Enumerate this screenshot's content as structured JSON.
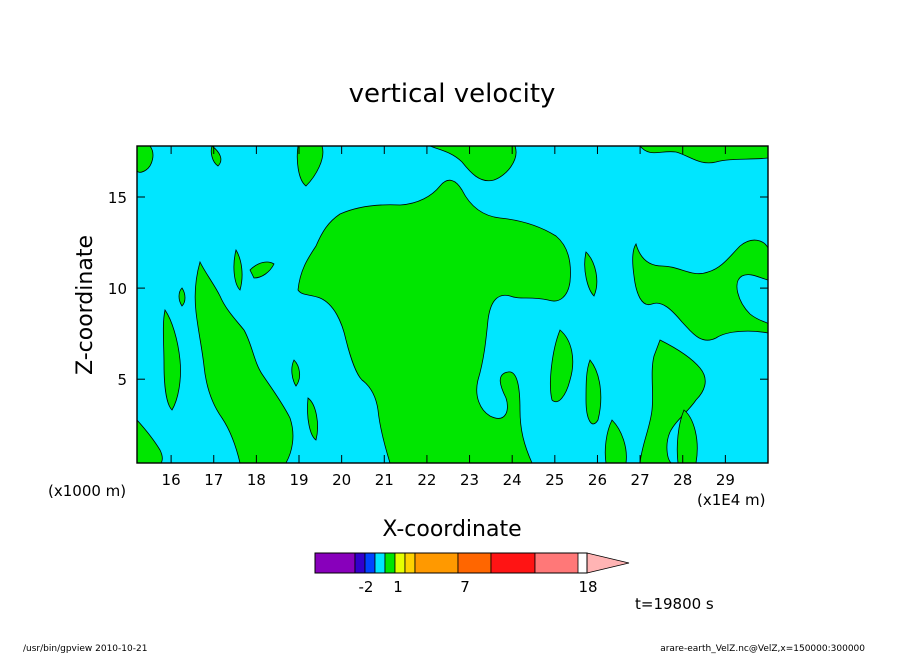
{
  "chart_data": {
    "type": "contour",
    "title": "vertical velocity",
    "xlabel": "X-coordinate",
    "ylabel": "Z-coordinate",
    "x_axis": {
      "ticks": [
        16,
        17,
        18,
        19,
        20,
        21,
        22,
        23,
        24,
        25,
        26,
        27,
        28,
        29
      ],
      "range": [
        15.2,
        30.0
      ],
      "scale_note": "(x1E4 m)"
    },
    "y_axis": {
      "ticks": [
        5,
        10,
        15
      ],
      "range": [
        0.4,
        17.8
      ],
      "scale_note": "(x1000 m)"
    },
    "colorbar": {
      "labels": [
        "-2",
        "1",
        "7",
        "18"
      ],
      "colors": [
        "#8800bb",
        "#3300cc",
        "#0044ff",
        "#00e6ff",
        "#00e600",
        "#e6ff00",
        "#ffd200",
        "#ff9900",
        "#ff6600",
        "#ff1414",
        "#ff7878",
        "#ffb4b4"
      ]
    },
    "field_colors": {
      "background": "#00e6ff",
      "positive": "#00e600"
    },
    "time_label": "t=19800 s",
    "footer_left": "/usr/bin/gpview   2010-10-21",
    "footer_right": "arare-earth_VelZ.nc@VelZ,x=150000:300000"
  }
}
